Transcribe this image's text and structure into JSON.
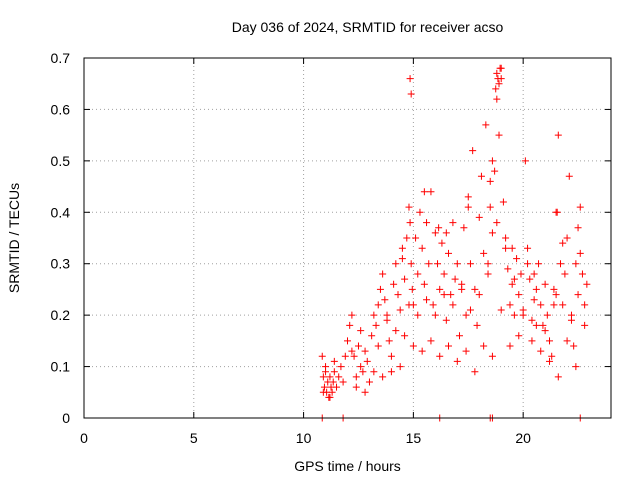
{
  "chart_data": {
    "type": "scatter",
    "title": "Day 036 of 2024, SRMTID for receiver acso",
    "xlabel": "GPS time / hours",
    "ylabel": "SRMTID / TECUs",
    "xlim": [
      0,
      24
    ],
    "ylim": [
      0,
      0.7
    ],
    "xticks": [
      "0",
      "5",
      "10",
      "15",
      "20"
    ],
    "xtick_values": [
      0,
      5,
      10,
      15,
      20
    ],
    "yticks": [
      "0",
      "0.1",
      "0.2",
      "0.3",
      "0.4",
      "0.5",
      "0.6",
      "0.7"
    ],
    "ytick_values": [
      0,
      0.1,
      0.2,
      0.3,
      0.4,
      0.5,
      0.6,
      0.7
    ],
    "grid": true,
    "marker": "+",
    "series_color": "#ff0000",
    "series": [
      {
        "name": "SRMTID",
        "x": [
          10.85,
          10.9,
          10.95,
          11.0,
          11.05,
          11.1,
          11.15,
          11.2,
          11.25,
          11.3,
          11.35,
          11.4,
          11.5,
          11.6,
          11.7,
          11.8,
          11.9,
          12.0,
          12.1,
          12.2,
          12.3,
          12.4,
          12.5,
          12.6,
          12.7,
          12.8,
          12.9,
          13.0,
          13.1,
          13.2,
          13.3,
          13.4,
          13.5,
          13.6,
          13.7,
          13.8,
          13.9,
          14.0,
          14.1,
          14.2,
          14.3,
          14.4,
          14.5,
          14.6,
          14.7,
          14.8,
          14.85,
          14.9,
          14.95,
          15.0,
          15.1,
          15.2,
          15.3,
          15.4,
          15.5,
          15.6,
          15.7,
          15.8,
          15.9,
          16.0,
          16.1,
          16.2,
          16.3,
          16.4,
          16.5,
          16.6,
          16.7,
          16.8,
          16.9,
          17.0,
          17.1,
          17.2,
          17.3,
          17.4,
          17.5,
          17.6,
          17.7,
          17.8,
          17.9,
          18.0,
          18.1,
          18.2,
          18.3,
          18.4,
          18.5,
          18.6,
          18.7,
          18.8,
          18.9,
          19.0,
          19.1,
          19.2,
          19.3,
          19.4,
          19.5,
          19.6,
          19.7,
          19.8,
          19.9,
          20.0,
          20.1,
          20.2,
          20.3,
          20.4,
          20.5,
          20.6,
          20.7,
          20.8,
          20.9,
          21.0,
          21.1,
          21.2,
          21.3,
          21.4,
          21.5,
          21.6,
          21.7,
          21.8,
          21.9,
          22.0,
          22.1,
          22.2,
          22.3,
          22.4,
          22.5,
          22.6,
          22.7,
          22.8,
          22.9,
          10.9,
          11.0,
          11.2,
          11.4,
          12.2,
          12.4,
          12.6,
          12.8,
          13.2,
          13.4,
          13.6,
          13.8,
          14.0,
          14.2,
          14.4,
          14.6,
          14.8,
          15.0,
          15.2,
          15.4,
          15.6,
          15.8,
          16.0,
          16.2,
          16.4,
          16.6,
          16.8,
          17.0,
          17.2,
          17.4,
          17.6,
          17.8,
          18.0,
          18.2,
          18.4,
          18.6,
          18.8,
          19.0,
          19.2,
          19.4,
          19.6,
          19.8,
          20.0,
          20.2,
          20.4,
          20.6,
          20.8,
          21.0,
          21.2,
          21.4,
          21.6,
          21.8,
          22.0,
          22.2,
          22.4,
          22.6,
          22.8,
          14.85,
          14.9,
          18.75,
          18.8,
          18.85,
          18.9,
          18.95,
          19.0,
          16.15,
          18.6,
          21.55,
          10.85,
          11.8,
          16.2,
          18.5,
          18.6,
          22.6,
          14.5,
          15.5,
          16.5,
          17.5,
          18.5,
          19.5,
          20.5,
          21.5,
          22.5
        ],
        "y": [
          0.12,
          0.08,
          0.06,
          0.09,
          0.05,
          0.07,
          0.04,
          0.08,
          0.06,
          0.05,
          0.07,
          0.09,
          0.06,
          0.08,
          0.1,
          0.07,
          0.12,
          0.15,
          0.18,
          0.2,
          0.12,
          0.08,
          0.14,
          0.1,
          0.09,
          0.13,
          0.11,
          0.07,
          0.16,
          0.2,
          0.18,
          0.22,
          0.25,
          0.28,
          0.23,
          0.19,
          0.15,
          0.12,
          0.26,
          0.3,
          0.24,
          0.21,
          0.33,
          0.27,
          0.35,
          0.41,
          0.38,
          0.3,
          0.25,
          0.22,
          0.35,
          0.28,
          0.4,
          0.33,
          0.26,
          0.38,
          0.3,
          0.44,
          0.22,
          0.36,
          0.3,
          0.25,
          0.34,
          0.28,
          0.19,
          0.32,
          0.24,
          0.38,
          0.27,
          0.3,
          0.16,
          0.26,
          0.37,
          0.2,
          0.43,
          0.3,
          0.52,
          0.25,
          0.18,
          0.39,
          0.47,
          0.32,
          0.57,
          0.28,
          0.41,
          0.36,
          0.48,
          0.62,
          0.55,
          0.68,
          0.42,
          0.35,
          0.29,
          0.22,
          0.26,
          0.2,
          0.31,
          0.24,
          0.28,
          0.2,
          0.5,
          0.33,
          0.27,
          0.19,
          0.23,
          0.25,
          0.3,
          0.22,
          0.18,
          0.26,
          0.2,
          0.15,
          0.12,
          0.25,
          0.4,
          0.55,
          0.3,
          0.22,
          0.28,
          0.35,
          0.47,
          0.2,
          0.14,
          0.3,
          0.24,
          0.41,
          0.28,
          0.22,
          0.26,
          0.05,
          0.1,
          0.04,
          0.11,
          0.13,
          0.06,
          0.17,
          0.05,
          0.09,
          0.14,
          0.08,
          0.2,
          0.09,
          0.17,
          0.1,
          0.16,
          0.22,
          0.14,
          0.2,
          0.13,
          0.23,
          0.15,
          0.2,
          0.12,
          0.24,
          0.14,
          0.22,
          0.11,
          0.25,
          0.13,
          0.21,
          0.09,
          0.24,
          0.14,
          0.3,
          0.12,
          0.38,
          0.21,
          0.33,
          0.14,
          0.27,
          0.16,
          0.21,
          0.3,
          0.15,
          0.18,
          0.13,
          0.17,
          0.11,
          0.22,
          0.08,
          0.34,
          0.15,
          0.19,
          0.1,
          0.32,
          0.18,
          0.66,
          0.63,
          0.64,
          0.67,
          0.66,
          0.65,
          0.68,
          0.66,
          0.37,
          0.5,
          0.4,
          0.0,
          0.0,
          0.0,
          0.0,
          0.0,
          0.0,
          0.31,
          0.44,
          0.36,
          0.41,
          0.46,
          0.33,
          0.28,
          0.24,
          0.37
        ]
      }
    ]
  }
}
